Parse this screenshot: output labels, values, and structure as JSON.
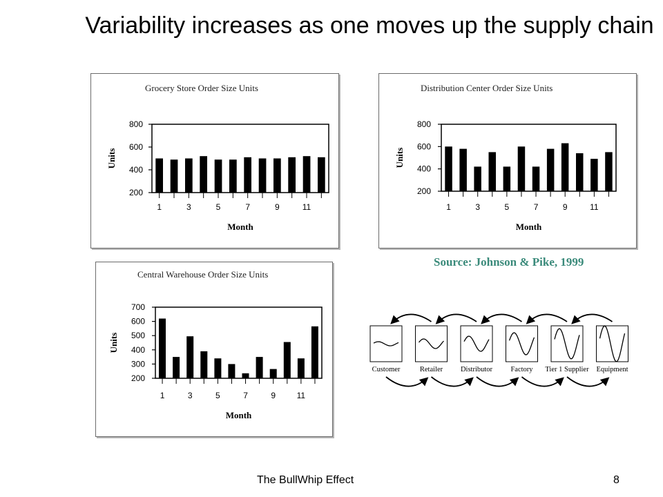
{
  "slide": {
    "title": "Variability increases as one moves up the supply chain",
    "source": "Source: Johnson & Pike, 1999",
    "footer": "The BullWhip Effect",
    "page_number": "8"
  },
  "chart_data": [
    {
      "type": "bar",
      "title": "Grocery Store Order Size Units",
      "xlabel": "Month",
      "ylabel": "Units",
      "categories": [
        1,
        2,
        3,
        4,
        5,
        6,
        7,
        8,
        9,
        10,
        11,
        12
      ],
      "x_tick_labels": [
        "1",
        "3",
        "5",
        "7",
        "9",
        "11"
      ],
      "values": [
        500,
        490,
        500,
        520,
        490,
        490,
        510,
        500,
        500,
        510,
        520,
        510
      ],
      "ylim": [
        200,
        800
      ],
      "y_ticks": [
        200,
        400,
        600,
        800
      ],
      "grid": false,
      "bar_color": "#000000"
    },
    {
      "type": "bar",
      "title": "Distribution Center Order Size Units",
      "xlabel": "Month",
      "ylabel": "Units",
      "categories": [
        1,
        2,
        3,
        4,
        5,
        6,
        7,
        8,
        9,
        10,
        11,
        12
      ],
      "x_tick_labels": [
        "1",
        "3",
        "5",
        "7",
        "9",
        "11"
      ],
      "values": [
        600,
        580,
        420,
        550,
        420,
        600,
        420,
        580,
        630,
        540,
        490,
        550
      ],
      "ylim": [
        200,
        800
      ],
      "y_ticks": [
        200,
        400,
        600,
        800
      ],
      "grid": false,
      "bar_color": "#000000"
    },
    {
      "type": "bar",
      "title": "Central Warehouse Order Size Units",
      "xlabel": "Month",
      "ylabel": "Units",
      "categories": [
        1,
        2,
        3,
        4,
        5,
        6,
        7,
        8,
        9,
        10,
        11,
        12
      ],
      "x_tick_labels": [
        "1",
        "3",
        "5",
        "7",
        "9",
        "11"
      ],
      "values": [
        620,
        350,
        495,
        390,
        340,
        300,
        235,
        350,
        265,
        455,
        340,
        565
      ],
      "ylim": [
        200,
        700
      ],
      "y_ticks": [
        200,
        300,
        400,
        500,
        600,
        700
      ],
      "grid": false,
      "bar_color": "#000000"
    }
  ],
  "diagram": {
    "stages": [
      "Customer",
      "Retailer",
      "Distributor",
      "Factory",
      "Tier 1 Supplier",
      "Equipment"
    ],
    "colors": {
      "ink": "#000000",
      "source": "#3a8a7a"
    }
  }
}
